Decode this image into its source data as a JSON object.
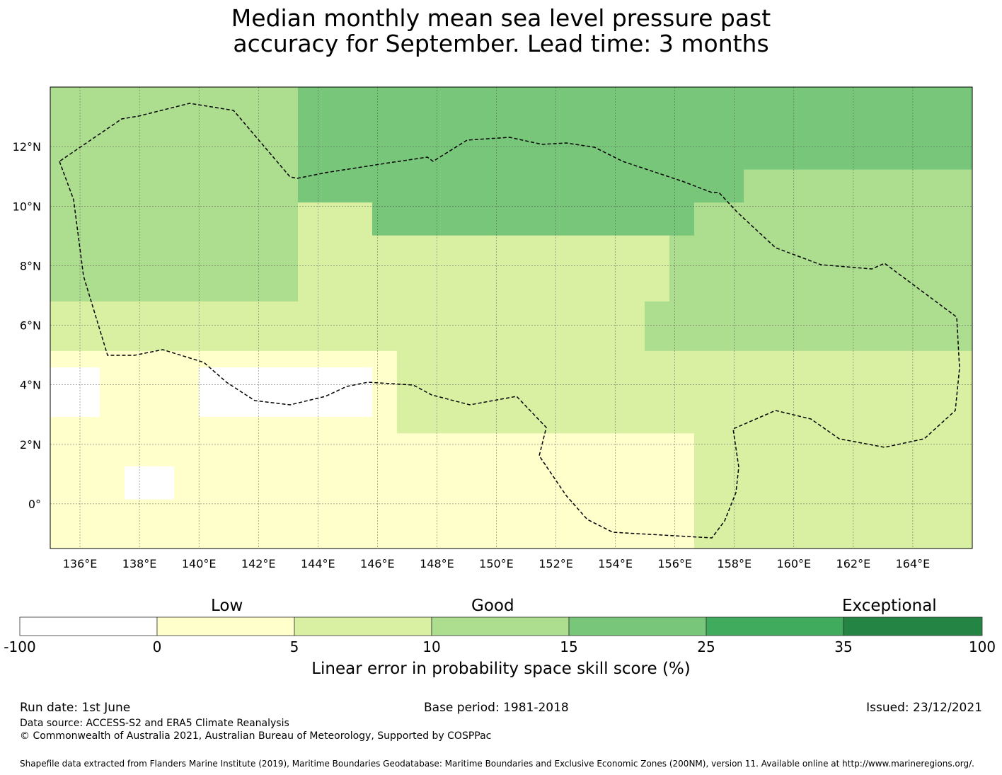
{
  "title_line1": "Median monthly mean sea level pressure past",
  "title_line2": "accuracy for September. Lead time: 3 months",
  "map": {
    "lon_labels": [
      "136°E",
      "138°E",
      "140°E",
      "142°E",
      "144°E",
      "146°E",
      "148°E",
      "150°E",
      "152°E",
      "154°E",
      "156°E",
      "158°E",
      "160°E",
      "162°E",
      "164°E"
    ],
    "lat_labels": [
      "12°N",
      "10°N",
      "8°N",
      "6°N",
      "4°N",
      "2°N",
      "0°"
    ],
    "lon_values": [
      136,
      138,
      140,
      142,
      144,
      146,
      148,
      150,
      152,
      154,
      156,
      158,
      160,
      162,
      164
    ],
    "lat_values": [
      12,
      10,
      8,
      6,
      4,
      2,
      0
    ],
    "lon_range": [
      135,
      166
    ],
    "lat_range": [
      -1.5,
      14
    ],
    "colors": {
      "none": "#ffffff",
      "low": "#ffffcc",
      "low_mid": "#d9f0a3",
      "mid": "#addd8e",
      "good": "#78c679",
      "high": "#41ab5d",
      "top": "#238443"
    }
  },
  "legend": {
    "category_low": "Low",
    "category_good": "Good",
    "category_exceptional": "Exceptional",
    "ticks": [
      "-100",
      "0",
      "5",
      "10",
      "15",
      "25",
      "35",
      "100"
    ],
    "colors": [
      "#ffffff",
      "#ffffcc",
      "#d9f0a3",
      "#addd8e",
      "#78c679",
      "#41ab5d",
      "#238443"
    ],
    "score_label": "Linear error in probability space skill score (%)"
  },
  "footer": {
    "run_date": "Run date: 1st June",
    "base_period": "Base period: 1981-2018",
    "issued": "Issued: 23/12/2021",
    "data_source": "Data source: ACCESS-S2 and ERA5 Climate Reanalysis",
    "copyright": "© Commonwealth of Australia 2021, Australian Bureau of Meteorology, Supported by COSPPac",
    "shapefile": "Shapefile data extracted from Flanders Marine Institute (2019), Maritime Boundaries Geodatabase: Maritime Boundaries and Exclusive Economic Zones (200NM), version 11. Available online at http://www.marineregions.org/."
  }
}
